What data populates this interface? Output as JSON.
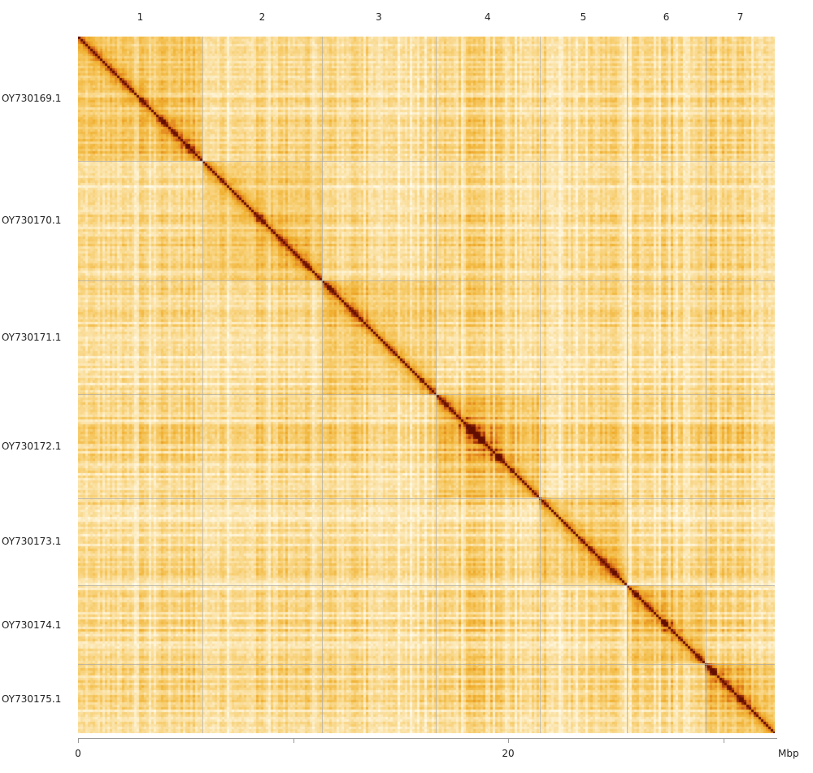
{
  "chart_data": {
    "type": "heatmap",
    "title": "",
    "xlabel": "",
    "ylabel": "",
    "x_unit": "Mbp",
    "x_ticks": [
      0,
      10,
      20,
      30
    ],
    "x_tick_labels": [
      "0",
      "",
      "20",
      ""
    ],
    "xlim": [
      0,
      32.4
    ],
    "grid": false,
    "legend": "none",
    "sequences": [
      {
        "top_label": "1",
        "name": "OY730169.1",
        "length_mbp": 5.78
      },
      {
        "top_label": "2",
        "name": "OY730170.1",
        "length_mbp": 5.56
      },
      {
        "top_label": "3",
        "name": "OY730171.1",
        "length_mbp": 5.29
      },
      {
        "top_label": "4",
        "name": "OY730172.1",
        "length_mbp": 4.84
      },
      {
        "top_label": "5",
        "name": "OY730173.1",
        "length_mbp": 4.05
      },
      {
        "top_label": "6",
        "name": "OY730174.1",
        "length_mbp": 3.67
      },
      {
        "top_label": "7",
        "name": "OY730175.1",
        "length_mbp": 3.21
      }
    ],
    "colors": {
      "low": "#fffbea",
      "mid": "#f0b030",
      "high": "#d86a10",
      "max": "#6a1000"
    }
  }
}
